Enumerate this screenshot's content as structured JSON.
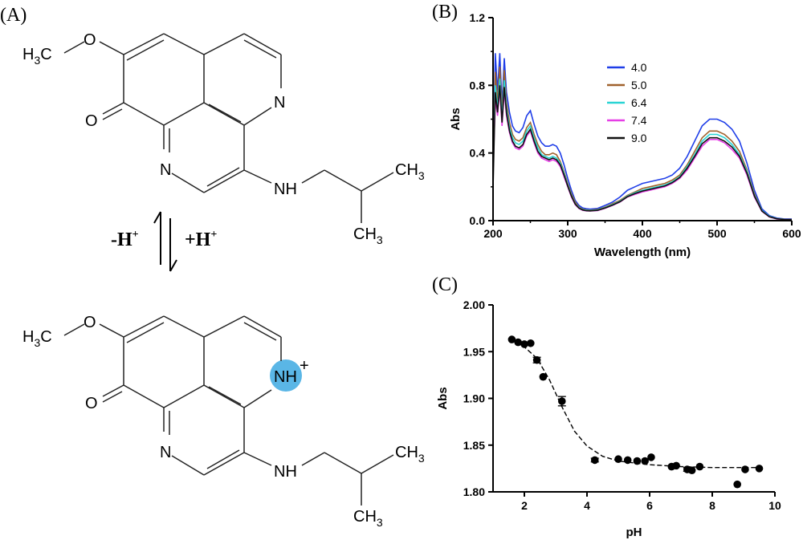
{
  "panels": {
    "a": "(A)",
    "b": "(B)",
    "c": "(C)"
  },
  "structures": {
    "methyl_h": "H",
    "methyl_sub": "3",
    "methyl_c": "C",
    "oxygen": "O",
    "nitrogen": "N",
    "amine": "NH",
    "ch3_c": "CH",
    "ch3_sub": "3",
    "protonated_n": "NH",
    "plus": "+",
    "protonation_highlight_color": "#5ab6e6"
  },
  "equilibrium": {
    "deprotonate": "-H",
    "protonate": "+H",
    "charge": "+"
  },
  "chart_data": [
    {
      "panel": "(B)",
      "type": "line",
      "xlabel": "Wavelength (nm)",
      "ylabel": "Abs",
      "xlim": [
        200,
        600
      ],
      "ylim": [
        0,
        1.2
      ],
      "xticks": [
        "200",
        "300",
        "400",
        "500",
        "600"
      ],
      "yticks": [
        "0.0",
        "0.4",
        "0.8",
        "1.2"
      ],
      "grid": false,
      "legend": "top-right",
      "x": [
        200,
        203,
        206,
        209,
        212,
        215,
        218,
        222,
        226,
        230,
        235,
        240,
        245,
        250,
        255,
        260,
        265,
        270,
        275,
        280,
        285,
        290,
        295,
        300,
        305,
        310,
        315,
        320,
        325,
        330,
        340,
        350,
        360,
        370,
        380,
        390,
        400,
        410,
        420,
        430,
        440,
        450,
        460,
        470,
        480,
        490,
        500,
        510,
        520,
        530,
        540,
        550,
        560,
        570,
        580,
        590,
        600
      ],
      "series": [
        {
          "name": "4.0",
          "color": "#1f3ee8",
          "values": [
            0.31,
            0.99,
            0.76,
            0.99,
            0.68,
            0.96,
            0.76,
            0.64,
            0.56,
            0.53,
            0.52,
            0.55,
            0.62,
            0.65,
            0.57,
            0.5,
            0.46,
            0.44,
            0.44,
            0.45,
            0.44,
            0.4,
            0.33,
            0.25,
            0.18,
            0.12,
            0.09,
            0.075,
            0.07,
            0.068,
            0.072,
            0.09,
            0.11,
            0.14,
            0.18,
            0.2,
            0.22,
            0.23,
            0.24,
            0.25,
            0.27,
            0.31,
            0.38,
            0.47,
            0.56,
            0.6,
            0.6,
            0.58,
            0.54,
            0.47,
            0.34,
            0.18,
            0.07,
            0.03,
            0.015,
            0.01,
            0.01
          ]
        },
        {
          "name": "5.0",
          "color": "#a0622d",
          "values": [
            0.3,
            0.88,
            0.7,
            0.91,
            0.63,
            0.89,
            0.7,
            0.58,
            0.51,
            0.48,
            0.47,
            0.49,
            0.55,
            0.58,
            0.51,
            0.45,
            0.41,
            0.39,
            0.39,
            0.4,
            0.39,
            0.35,
            0.29,
            0.22,
            0.16,
            0.11,
            0.08,
            0.068,
            0.064,
            0.062,
            0.066,
            0.08,
            0.1,
            0.12,
            0.15,
            0.17,
            0.19,
            0.2,
            0.21,
            0.22,
            0.24,
            0.27,
            0.33,
            0.41,
            0.49,
            0.53,
            0.53,
            0.51,
            0.47,
            0.41,
            0.3,
            0.16,
            0.06,
            0.025,
            0.012,
            0.008,
            0.008
          ]
        },
        {
          "name": "6.4",
          "color": "#2ad4d4",
          "values": [
            0.29,
            0.8,
            0.66,
            0.84,
            0.6,
            0.83,
            0.66,
            0.55,
            0.49,
            0.46,
            0.45,
            0.47,
            0.53,
            0.56,
            0.49,
            0.43,
            0.39,
            0.38,
            0.37,
            0.38,
            0.37,
            0.34,
            0.28,
            0.21,
            0.15,
            0.1,
            0.077,
            0.065,
            0.061,
            0.06,
            0.063,
            0.077,
            0.095,
            0.115,
            0.145,
            0.165,
            0.18,
            0.19,
            0.2,
            0.21,
            0.23,
            0.26,
            0.32,
            0.39,
            0.47,
            0.51,
            0.51,
            0.49,
            0.45,
            0.39,
            0.29,
            0.15,
            0.06,
            0.025,
            0.012,
            0.008,
            0.008
          ]
        },
        {
          "name": "7.4",
          "color": "#e63ee6",
          "values": [
            0.28,
            0.72,
            0.62,
            0.78,
            0.56,
            0.77,
            0.62,
            0.52,
            0.46,
            0.43,
            0.42,
            0.44,
            0.5,
            0.53,
            0.46,
            0.4,
            0.37,
            0.36,
            0.35,
            0.36,
            0.35,
            0.32,
            0.26,
            0.2,
            0.14,
            0.095,
            0.072,
            0.061,
            0.058,
            0.057,
            0.06,
            0.073,
            0.09,
            0.11,
            0.14,
            0.155,
            0.17,
            0.18,
            0.19,
            0.2,
            0.22,
            0.25,
            0.3,
            0.37,
            0.44,
            0.48,
            0.48,
            0.46,
            0.42,
            0.37,
            0.27,
            0.14,
            0.055,
            0.022,
            0.01,
            0.007,
            0.007
          ]
        },
        {
          "name": "9.0",
          "color": "#111111",
          "values": [
            0.19,
            0.76,
            0.64,
            0.8,
            0.58,
            0.79,
            0.64,
            0.53,
            0.47,
            0.44,
            0.43,
            0.45,
            0.51,
            0.54,
            0.47,
            0.41,
            0.38,
            0.37,
            0.36,
            0.37,
            0.36,
            0.33,
            0.27,
            0.205,
            0.145,
            0.098,
            0.074,
            0.063,
            0.059,
            0.058,
            0.061,
            0.075,
            0.092,
            0.112,
            0.142,
            0.16,
            0.175,
            0.185,
            0.195,
            0.205,
            0.225,
            0.255,
            0.31,
            0.38,
            0.455,
            0.49,
            0.49,
            0.47,
            0.435,
            0.38,
            0.28,
            0.145,
            0.057,
            0.023,
            0.011,
            0.007,
            0.007
          ]
        }
      ]
    },
    {
      "panel": "(C)",
      "type": "scatter",
      "xlabel": "pH",
      "ylabel": "Abs",
      "xlim": [
        1,
        10
      ],
      "ylim": [
        1.8,
        2.0
      ],
      "xticks": [
        "2",
        "4",
        "6",
        "8",
        "10"
      ],
      "yticks": [
        "1.80",
        "1.85",
        "1.90",
        "1.95",
        "2.00"
      ],
      "grid": false,
      "points": [
        {
          "x": 1.6,
          "y": 1.963,
          "err": 0
        },
        {
          "x": 1.8,
          "y": 1.96,
          "err": 0
        },
        {
          "x": 2.0,
          "y": 1.958,
          "err": 0
        },
        {
          "x": 2.2,
          "y": 1.959,
          "err": 0
        },
        {
          "x": 2.4,
          "y": 1.941,
          "err": 0.003
        },
        {
          "x": 2.6,
          "y": 1.923,
          "err": 0
        },
        {
          "x": 3.2,
          "y": 1.897,
          "err": 0.005
        },
        {
          "x": 4.25,
          "y": 1.834,
          "err": 0.002
        },
        {
          "x": 5.0,
          "y": 1.835,
          "err": 0
        },
        {
          "x": 5.3,
          "y": 1.834,
          "err": 0
        },
        {
          "x": 5.6,
          "y": 1.833,
          "err": 0
        },
        {
          "x": 5.85,
          "y": 1.833,
          "err": 0
        },
        {
          "x": 6.05,
          "y": 1.837,
          "err": 0
        },
        {
          "x": 6.7,
          "y": 1.827,
          "err": 0
        },
        {
          "x": 6.85,
          "y": 1.828,
          "err": 0
        },
        {
          "x": 7.2,
          "y": 1.824,
          "err": 0.002
        },
        {
          "x": 7.35,
          "y": 1.823,
          "err": 0
        },
        {
          "x": 7.6,
          "y": 1.827,
          "err": 0
        },
        {
          "x": 8.8,
          "y": 1.808,
          "err": 0
        },
        {
          "x": 9.05,
          "y": 1.824,
          "err": 0
        },
        {
          "x": 9.5,
          "y": 1.825,
          "err": 0
        }
      ],
      "fit": {
        "style": "dashed",
        "x": [
          1.5,
          2.0,
          2.4,
          2.8,
          3.2,
          3.6,
          4.0,
          4.5,
          5.0,
          6.0,
          7.0,
          8.0,
          9.0,
          9.5
        ],
        "y": [
          1.962,
          1.955,
          1.943,
          1.92,
          1.891,
          1.865,
          1.849,
          1.838,
          1.833,
          1.829,
          1.827,
          1.826,
          1.826,
          1.826
        ]
      }
    }
  ]
}
